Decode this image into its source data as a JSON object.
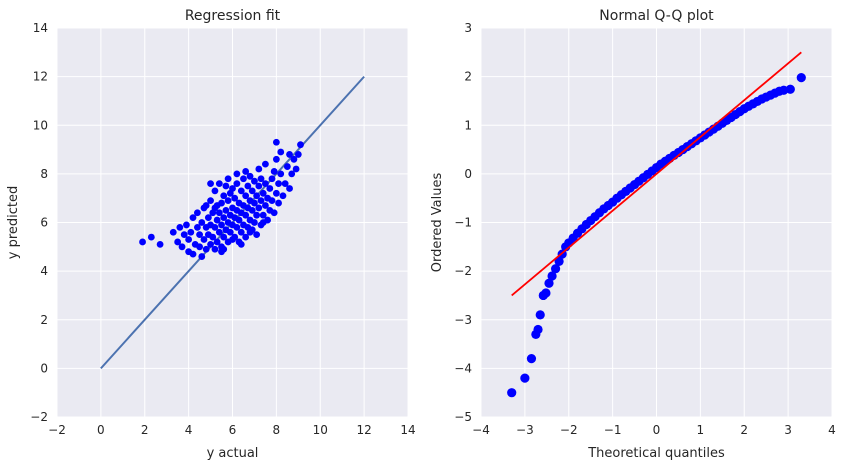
{
  "chart_data": [
    {
      "type": "scatter",
      "title": "Regression fit",
      "xlabel": "y actual",
      "ylabel": "y predicted",
      "xlim": [
        -2,
        14
      ],
      "ylim": [
        -2,
        14
      ],
      "xticks": [
        -2,
        0,
        2,
        4,
        6,
        8,
        10,
        12,
        14
      ],
      "yticks": [
        -2,
        0,
        2,
        4,
        6,
        8,
        10,
        12,
        14
      ],
      "grid": true,
      "point_color": "#0000ff",
      "line_color": "#4c72b0",
      "fit_line": [
        [
          0,
          0
        ],
        [
          12,
          12
        ]
      ],
      "points": [
        [
          1.9,
          5.2
        ],
        [
          2.3,
          5.4
        ],
        [
          2.7,
          5.1
        ],
        [
          3.3,
          5.6
        ],
        [
          3.5,
          5.2
        ],
        [
          3.6,
          5.8
        ],
        [
          3.7,
          5.0
        ],
        [
          3.8,
          5.5
        ],
        [
          3.9,
          5.9
        ],
        [
          4.0,
          4.8
        ],
        [
          4.0,
          5.3
        ],
        [
          4.1,
          5.6
        ],
        [
          4.2,
          6.2
        ],
        [
          4.2,
          4.7
        ],
        [
          4.3,
          5.1
        ],
        [
          4.4,
          5.8
        ],
        [
          4.4,
          6.4
        ],
        [
          4.5,
          5.0
        ],
        [
          4.5,
          5.5
        ],
        [
          4.6,
          6.0
        ],
        [
          4.6,
          4.6
        ],
        [
          4.7,
          5.3
        ],
        [
          4.7,
          6.6
        ],
        [
          4.8,
          5.8
        ],
        [
          4.8,
          4.9
        ],
        [
          4.9,
          5.5
        ],
        [
          4.9,
          6.2
        ],
        [
          5.0,
          5.1
        ],
        [
          5.0,
          5.9
        ],
        [
          5.0,
          6.9
        ],
        [
          5.1,
          5.4
        ],
        [
          5.1,
          6.4
        ],
        [
          5.2,
          4.9
        ],
        [
          5.2,
          5.8
        ],
        [
          5.2,
          7.3
        ],
        [
          5.3,
          5.2
        ],
        [
          5.3,
          6.1
        ],
        [
          5.3,
          6.7
        ],
        [
          5.4,
          5.6
        ],
        [
          5.4,
          6.4
        ],
        [
          5.4,
          7.6
        ],
        [
          5.5,
          5.0
        ],
        [
          5.5,
          5.9
        ],
        [
          5.5,
          6.8
        ],
        [
          5.6,
          5.4
        ],
        [
          5.6,
          6.2
        ],
        [
          5.6,
          7.1
        ],
        [
          5.7,
          5.7
        ],
        [
          5.7,
          6.5
        ],
        [
          5.7,
          7.5
        ],
        [
          5.8,
          5.2
        ],
        [
          5.8,
          6.0
        ],
        [
          5.8,
          6.9
        ],
        [
          5.9,
          5.6
        ],
        [
          5.9,
          6.3
        ],
        [
          5.9,
          7.2
        ],
        [
          6.0,
          5.9
        ],
        [
          6.0,
          6.6
        ],
        [
          6.0,
          7.4
        ],
        [
          6.1,
          5.4
        ],
        [
          6.1,
          6.2
        ],
        [
          6.1,
          7.0
        ],
        [
          6.2,
          5.8
        ],
        [
          6.2,
          6.5
        ],
        [
          6.2,
          7.6
        ],
        [
          6.3,
          5.2
        ],
        [
          6.3,
          6.1
        ],
        [
          6.3,
          6.8
        ],
        [
          6.4,
          5.6
        ],
        [
          6.4,
          6.4
        ],
        [
          6.4,
          7.3
        ],
        [
          6.5,
          5.9
        ],
        [
          6.5,
          6.7
        ],
        [
          6.5,
          7.8
        ],
        [
          6.6,
          5.4
        ],
        [
          6.6,
          6.3
        ],
        [
          6.6,
          7.1
        ],
        [
          6.7,
          5.8
        ],
        [
          6.7,
          6.6
        ],
        [
          6.7,
          7.5
        ],
        [
          6.8,
          6.1
        ],
        [
          6.8,
          6.9
        ],
        [
          6.8,
          7.9
        ],
        [
          6.9,
          5.7
        ],
        [
          6.9,
          6.5
        ],
        [
          6.9,
          7.3
        ],
        [
          7.0,
          6.0
        ],
        [
          7.0,
          6.8
        ],
        [
          7.0,
          7.7
        ],
        [
          7.1,
          5.5
        ],
        [
          7.1,
          6.3
        ],
        [
          7.1,
          7.1
        ],
        [
          7.2,
          6.6
        ],
        [
          7.2,
          7.5
        ],
        [
          7.2,
          8.2
        ],
        [
          7.3,
          5.9
        ],
        [
          7.3,
          6.9
        ],
        [
          7.3,
          7.8
        ],
        [
          7.4,
          6.3
        ],
        [
          7.4,
          7.2
        ],
        [
          7.5,
          6.7
        ],
        [
          7.5,
          7.6
        ],
        [
          7.5,
          8.4
        ],
        [
          7.6,
          6.1
        ],
        [
          7.6,
          7.0
        ],
        [
          7.7,
          6.5
        ],
        [
          7.7,
          7.4
        ],
        [
          7.8,
          6.9
        ],
        [
          7.8,
          7.8
        ],
        [
          7.9,
          6.4
        ],
        [
          7.9,
          8.1
        ],
        [
          8.0,
          7.2
        ],
        [
          8.0,
          8.6
        ],
        [
          8.0,
          9.3
        ],
        [
          8.1,
          6.8
        ],
        [
          8.1,
          7.6
        ],
        [
          8.2,
          8.0
        ],
        [
          8.2,
          8.9
        ],
        [
          8.3,
          7.1
        ],
        [
          8.4,
          7.6
        ],
        [
          8.5,
          8.3
        ],
        [
          8.6,
          7.4
        ],
        [
          8.6,
          8.8
        ],
        [
          8.7,
          8.0
        ],
        [
          8.8,
          8.6
        ],
        [
          8.9,
          8.2
        ],
        [
          9.0,
          8.8
        ],
        [
          9.1,
          9.2
        ],
        [
          5.5,
          4.8
        ],
        [
          6.0,
          5.3
        ],
        [
          6.4,
          5.1
        ],
        [
          5.2,
          6.6
        ],
        [
          5.6,
          4.9
        ],
        [
          6.8,
          5.6
        ],
        [
          7.4,
          6.0
        ],
        [
          4.8,
          6.7
        ],
        [
          5.0,
          7.6
        ],
        [
          6.2,
          8.0
        ],
        [
          5.8,
          7.8
        ],
        [
          6.6,
          8.1
        ]
      ]
    },
    {
      "type": "scatter",
      "title": "Normal Q-Q plot",
      "xlabel": "Theoretical quantiles",
      "ylabel": "Ordered Values",
      "xlim": [
        -4,
        4
      ],
      "ylim": [
        -5,
        3
      ],
      "xticks": [
        -4,
        -3,
        -2,
        -1,
        0,
        1,
        2,
        3,
        4
      ],
      "yticks": [
        -5,
        -4,
        -3,
        -2,
        -1,
        0,
        1,
        2,
        3
      ],
      "grid": true,
      "point_color": "#0000ff",
      "line_color": "#ff0000",
      "fit_line": [
        [
          -3.3,
          -2.5
        ],
        [
          3.3,
          2.5
        ]
      ],
      "points": [
        [
          -3.3,
          -4.5
        ],
        [
          -3.0,
          -4.2
        ],
        [
          -2.85,
          -3.8
        ],
        [
          -2.75,
          -3.3
        ],
        [
          -2.7,
          -3.2
        ],
        [
          -2.65,
          -2.9
        ],
        [
          -2.58,
          -2.5
        ],
        [
          -2.52,
          -2.45
        ],
        [
          -2.45,
          -2.25
        ],
        [
          -2.38,
          -2.1
        ],
        [
          -2.3,
          -1.95
        ],
        [
          -2.22,
          -1.8
        ],
        [
          -2.15,
          -1.65
        ],
        [
          -2.07,
          -1.5
        ],
        [
          -2.0,
          -1.42
        ],
        [
          -1.9,
          -1.32
        ],
        [
          -1.8,
          -1.22
        ],
        [
          -1.7,
          -1.13
        ],
        [
          -1.6,
          -1.04
        ],
        [
          -1.5,
          -0.96
        ],
        [
          -1.4,
          -0.88
        ],
        [
          -1.3,
          -0.8
        ],
        [
          -1.2,
          -0.72
        ],
        [
          -1.1,
          -0.65
        ],
        [
          -1.0,
          -0.58
        ],
        [
          -0.9,
          -0.5
        ],
        [
          -0.8,
          -0.43
        ],
        [
          -0.7,
          -0.36
        ],
        [
          -0.6,
          -0.29
        ],
        [
          -0.5,
          -0.22
        ],
        [
          -0.4,
          -0.15
        ],
        [
          -0.3,
          -0.08
        ],
        [
          -0.2,
          -0.01
        ],
        [
          -0.1,
          0.06
        ],
        [
          0.0,
          0.13
        ],
        [
          0.1,
          0.2
        ],
        [
          0.2,
          0.26
        ],
        [
          0.3,
          0.32
        ],
        [
          0.4,
          0.38
        ],
        [
          0.5,
          0.44
        ],
        [
          0.6,
          0.5
        ],
        [
          0.7,
          0.56
        ],
        [
          0.8,
          0.62
        ],
        [
          0.9,
          0.68
        ],
        [
          1.0,
          0.74
        ],
        [
          1.1,
          0.8
        ],
        [
          1.2,
          0.86
        ],
        [
          1.3,
          0.92
        ],
        [
          1.4,
          0.98
        ],
        [
          1.5,
          1.04
        ],
        [
          1.6,
          1.1
        ],
        [
          1.7,
          1.16
        ],
        [
          1.8,
          1.22
        ],
        [
          1.9,
          1.28
        ],
        [
          2.0,
          1.34
        ],
        [
          2.1,
          1.39
        ],
        [
          2.2,
          1.44
        ],
        [
          2.3,
          1.49
        ],
        [
          2.4,
          1.54
        ],
        [
          2.5,
          1.58
        ],
        [
          2.6,
          1.62
        ],
        [
          2.7,
          1.66
        ],
        [
          2.8,
          1.7
        ],
        [
          2.9,
          1.72
        ],
        [
          3.05,
          1.74
        ],
        [
          3.3,
          1.98
        ]
      ]
    }
  ]
}
